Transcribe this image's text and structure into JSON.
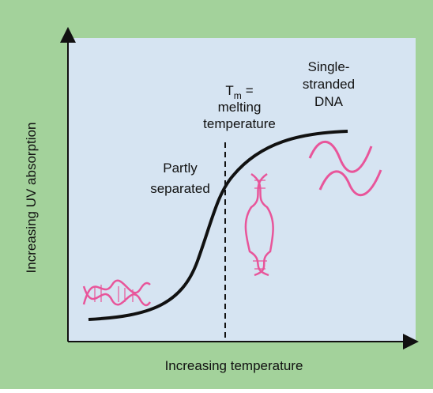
{
  "y_axis_label": "Increasing UV absorption",
  "x_axis_label": "Increasing temperature",
  "tm_label": {
    "symbol": "T",
    "subscript": "m",
    "rest": "=",
    "lines": [
      "melting",
      "temperature"
    ]
  },
  "single_stranded_label": [
    "Single-",
    "stranded",
    "DNA"
  ],
  "partly_separated_label": [
    "Partly",
    "separated"
  ]
}
